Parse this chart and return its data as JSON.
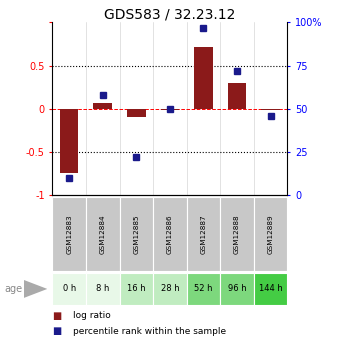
{
  "title": "GDS583 / 32.23.12",
  "samples": [
    "GSM12883",
    "GSM12884",
    "GSM12885",
    "GSM12886",
    "GSM12887",
    "GSM12888",
    "GSM12889"
  ],
  "ages": [
    "0 h",
    "8 h",
    "16 h",
    "28 h",
    "52 h",
    "96 h",
    "144 h"
  ],
  "log_ratio": [
    -0.75,
    0.07,
    -0.1,
    -0.02,
    0.72,
    0.3,
    -0.02
  ],
  "percentile_rank": [
    10,
    58,
    22,
    50,
    97,
    72,
    46
  ],
  "age_colors": [
    "#e8f8e8",
    "#e8f8e8",
    "#c0ecc0",
    "#c0ecc0",
    "#7dd87d",
    "#7dd87d",
    "#44cc44"
  ],
  "bar_color": "#8B1A1A",
  "dot_color": "#1a1a8B",
  "left_ylim": [
    -1,
    1
  ],
  "right_ylim": [
    0,
    100
  ],
  "left_yticks": [
    -1,
    -0.5,
    0,
    0.5,
    1
  ],
  "left_yticklabels": [
    "-1",
    "-0.5",
    "0",
    "0.5",
    ""
  ],
  "right_yticks": [
    0,
    25,
    50,
    75,
    100
  ],
  "right_yticklabels": [
    "0",
    "25",
    "50",
    "75",
    "100%"
  ],
  "background_color": "#ffffff",
  "title_fontsize": 10,
  "tick_fontsize": 7,
  "age_label": "age",
  "gsm_bg": "#c8c8c8",
  "legend_bar_label": "log ratio",
  "legend_dot_label": "percentile rank within the sample"
}
